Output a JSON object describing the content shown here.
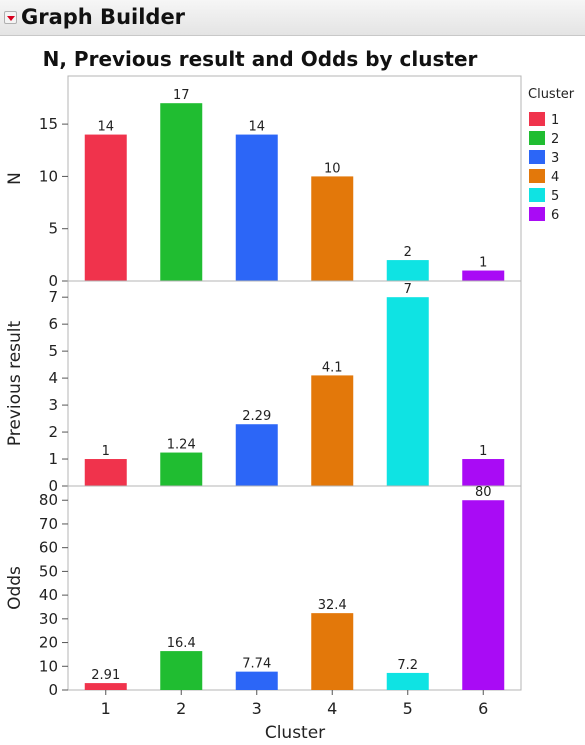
{
  "window": {
    "title": "Graph Builder"
  },
  "chart_data": {
    "type": "bar",
    "title": "N, Previous result and Odds by cluster",
    "xlabel": "Cluster",
    "categories": [
      "1",
      "2",
      "3",
      "4",
      "5",
      "6"
    ],
    "colors": [
      "#f0334c",
      "#20bd31",
      "#2c66f7",
      "#e3780a",
      "#0fe3e3",
      "#a90bf5"
    ],
    "legend": {
      "title": "Cluster",
      "position": "right",
      "items": [
        "1",
        "2",
        "3",
        "4",
        "5",
        "6"
      ]
    },
    "panels": [
      {
        "ylabel": "N",
        "values": [
          14,
          17,
          14,
          10,
          2,
          1
        ],
        "labels": [
          "14",
          "17",
          "14",
          "10",
          "2",
          "1"
        ],
        "ylim": [
          0,
          19.6
        ],
        "yticks": [
          0,
          5,
          10,
          15
        ],
        "grid": false
      },
      {
        "ylabel": "Previous result",
        "values": [
          1,
          1.24,
          2.29,
          4.1,
          7,
          1
        ],
        "labels": [
          "1",
          "1.24",
          "2.29",
          "4.1",
          "7",
          "1"
        ],
        "ylim": [
          0,
          7.6
        ],
        "yticks": [
          0,
          1,
          2,
          3,
          4,
          5,
          6,
          7
        ],
        "grid": false
      },
      {
        "ylabel": "Odds",
        "values": [
          2.91,
          16.4,
          7.74,
          32.4,
          7.2,
          80
        ],
        "labels": [
          "2.91",
          "16.4",
          "7.74",
          "32.4",
          "7.2",
          "80"
        ],
        "ylim": [
          0,
          86
        ],
        "yticks": [
          0,
          10,
          20,
          30,
          40,
          50,
          60,
          70,
          80
        ],
        "grid": false
      }
    ]
  }
}
